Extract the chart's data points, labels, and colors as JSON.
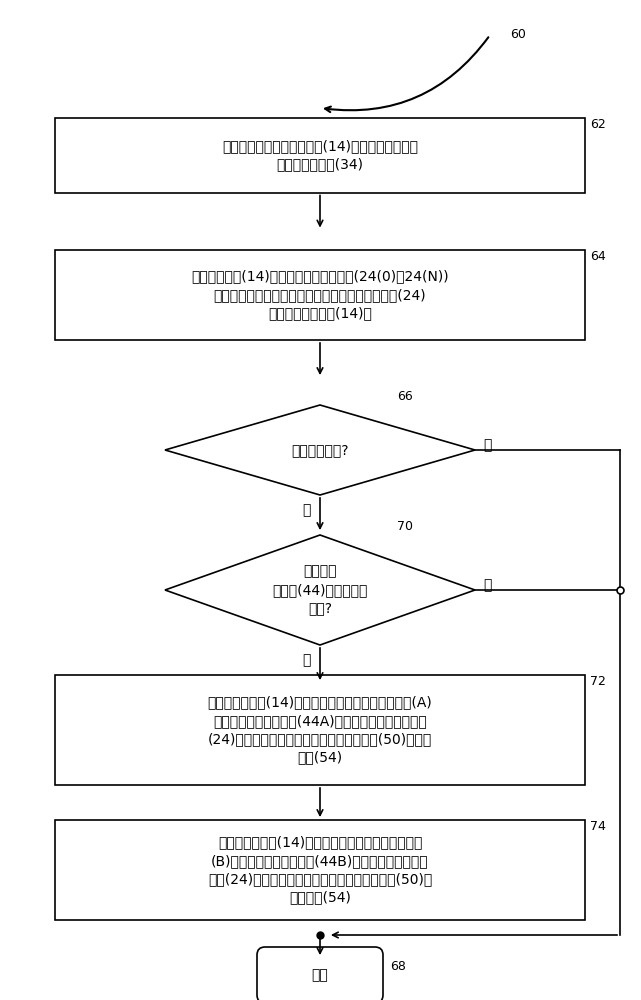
{
  "bg_color": "#ffffff",
  "line_color": "#000000",
  "font_size": 10,
  "nodes": {
    "label60": "60",
    "box62_text": "接收包括将寻址在高速缓存(14)中的存储器地址的\n存储器存取请求(34)",
    "box62_tag": "62",
    "box64_text": "确定高速缓存(14)中的多个高速缓存条目(24(0)到24(N))\n当中的对应于存储器地址的所存取的高速缓存条目(24)\n是否含于高速缓存(14)中",
    "box64_tag": "64",
    "d66_text": "高速缓存未中?",
    "d66_tag": "66",
    "d66_no": "否",
    "d66_yes": "是",
    "d70_text": "专用高速\n缓存组(44)的高速缓存\n未中?",
    "d70_tag": "70",
    "d70_no": "否",
    "d70_yes": "是",
    "box72_text": "基于由高速缓存(14)中的被应用了第一专用预取策略(A)\n的第一专用高速缓存组(44A)的所存取的高速缓存条目\n(24)产生的高速缓存未中，更新未中计数器(50)的未中\n计数(54)",
    "box72_tag": "72",
    "box74_text": "基于由高速缓存(14)中的被应用了第二专用预取策略\n(B)的第二专用高速缓存组(44B)的所存取的高速缓存\n条目(24)产生的高速缓存未中，更新未中计数器(50)的\n未中计数(54)",
    "box74_tag": "74",
    "end_text": "结束",
    "end_tag": "68"
  }
}
